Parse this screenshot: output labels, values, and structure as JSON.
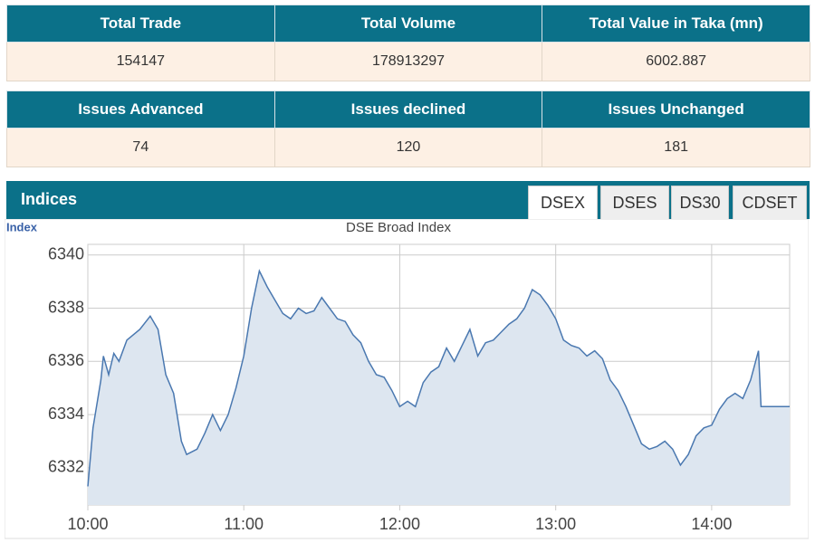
{
  "summary_table": {
    "headers": [
      "Total Trade",
      "Total Volume",
      "Total Value in Taka (mn)"
    ],
    "values": [
      "154147",
      "178913297",
      "6002.887"
    ]
  },
  "issues_table": {
    "headers": [
      "Issues Advanced",
      "Issues declined",
      "Issues Unchanged"
    ],
    "values": [
      "74",
      "120",
      "181"
    ]
  },
  "indices": {
    "title": "Indices",
    "tabs": [
      "DSEX",
      "DSES",
      "DS30",
      "CDSET"
    ],
    "active_tab": 0
  },
  "chart_data": {
    "type": "area",
    "title": "DSE Broad Index",
    "y_label": "Index",
    "color": "#4a78b0",
    "fill": "#dde6f0",
    "grid": true,
    "x": [
      600,
      602,
      605,
      606,
      608,
      610,
      612,
      615,
      620,
      624,
      627,
      630,
      633,
      636,
      638,
      642,
      645,
      648,
      651,
      654,
      657,
      660,
      663,
      666,
      669,
      672,
      675,
      678,
      681,
      684,
      687,
      690,
      693,
      696,
      699,
      702,
      705,
      708,
      711,
      714,
      717,
      720,
      723,
      726,
      729,
      732,
      735,
      738,
      741,
      744,
      747,
      750,
      753,
      756,
      759,
      762,
      765,
      768,
      771,
      774,
      777,
      780,
      783,
      786,
      789,
      792,
      795,
      798,
      801,
      804,
      807,
      810,
      813,
      816,
      819,
      822,
      825,
      828,
      831,
      834,
      837,
      840,
      843,
      846,
      849,
      852,
      855,
      858,
      859,
      870
    ],
    "values": [
      6331.3,
      6333.5,
      6335.3,
      6336.2,
      6335.5,
      6336.3,
      6336.0,
      6336.8,
      6337.2,
      6337.7,
      6337.2,
      6335.5,
      6334.8,
      6333.0,
      6332.5,
      6332.7,
      6333.3,
      6334.0,
      6333.4,
      6334.0,
      6335.0,
      6336.2,
      6338.0,
      6339.4,
      6338.8,
      6338.3,
      6337.8,
      6337.6,
      6338.0,
      6337.8,
      6337.9,
      6338.4,
      6338.0,
      6337.6,
      6337.5,
      6337.0,
      6336.7,
      6336.0,
      6335.5,
      6335.4,
      6334.9,
      6334.3,
      6334.5,
      6334.3,
      6335.2,
      6335.6,
      6335.8,
      6336.5,
      6336.0,
      6336.6,
      6337.2,
      6336.2,
      6336.7,
      6336.8,
      6337.1,
      6337.4,
      6337.6,
      6338.0,
      6338.7,
      6338.5,
      6338.1,
      6337.6,
      6336.8,
      6336.6,
      6336.5,
      6336.2,
      6336.4,
      6336.1,
      6335.3,
      6334.9,
      6334.3,
      6333.6,
      6332.9,
      6332.7,
      6332.8,
      6333.0,
      6332.7,
      6332.1,
      6332.5,
      6333.2,
      6333.5,
      6333.6,
      6334.2,
      6334.6,
      6334.8,
      6334.6,
      6335.3,
      6336.4,
      6334.3,
      6334.3
    ],
    "xlim": [
      600,
      870
    ],
    "xticks": [
      {
        "value": 600,
        "label": "10:00"
      },
      {
        "value": 660,
        "label": "11:00"
      },
      {
        "value": 720,
        "label": "12:00"
      },
      {
        "value": 780,
        "label": "13:00"
      },
      {
        "value": 840,
        "label": "14:00"
      }
    ],
    "ylim": [
      6330.6,
      6340.4
    ],
    "yticks": [
      6332,
      6334,
      6336,
      6338,
      6340
    ]
  }
}
